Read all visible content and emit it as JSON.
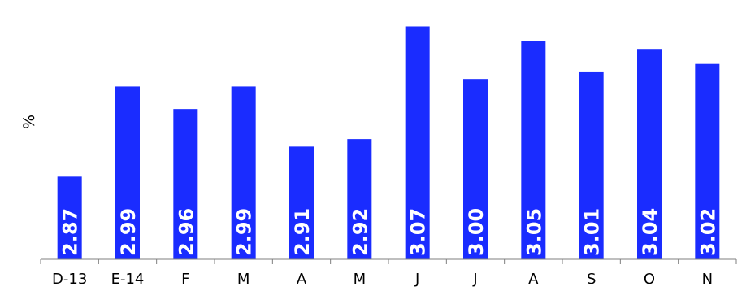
{
  "chart_data": {
    "type": "bar",
    "ylabel": "%",
    "xlabel": "",
    "categories": [
      "D-13",
      "E-14",
      "F",
      "M",
      "A",
      "M",
      "J",
      "J",
      "A",
      "S",
      "O",
      "N"
    ],
    "values": [
      2.87,
      2.99,
      2.96,
      2.99,
      2.91,
      2.92,
      3.07,
      3.0,
      3.05,
      3.01,
      3.04,
      3.02
    ],
    "value_labels": [
      "2.87",
      "2.99",
      "2.96",
      "2.99",
      "2.91",
      "2.92",
      "3.07",
      "3.00",
      "3.05",
      "3.01",
      "3.04",
      "3.02"
    ],
    "ylim": [
      2.76,
      3.09
    ],
    "bar_color": "#1a2cff",
    "label_color": "#ffffff",
    "axis_color": "#7f7f7f",
    "grid": false,
    "legend": "none"
  }
}
